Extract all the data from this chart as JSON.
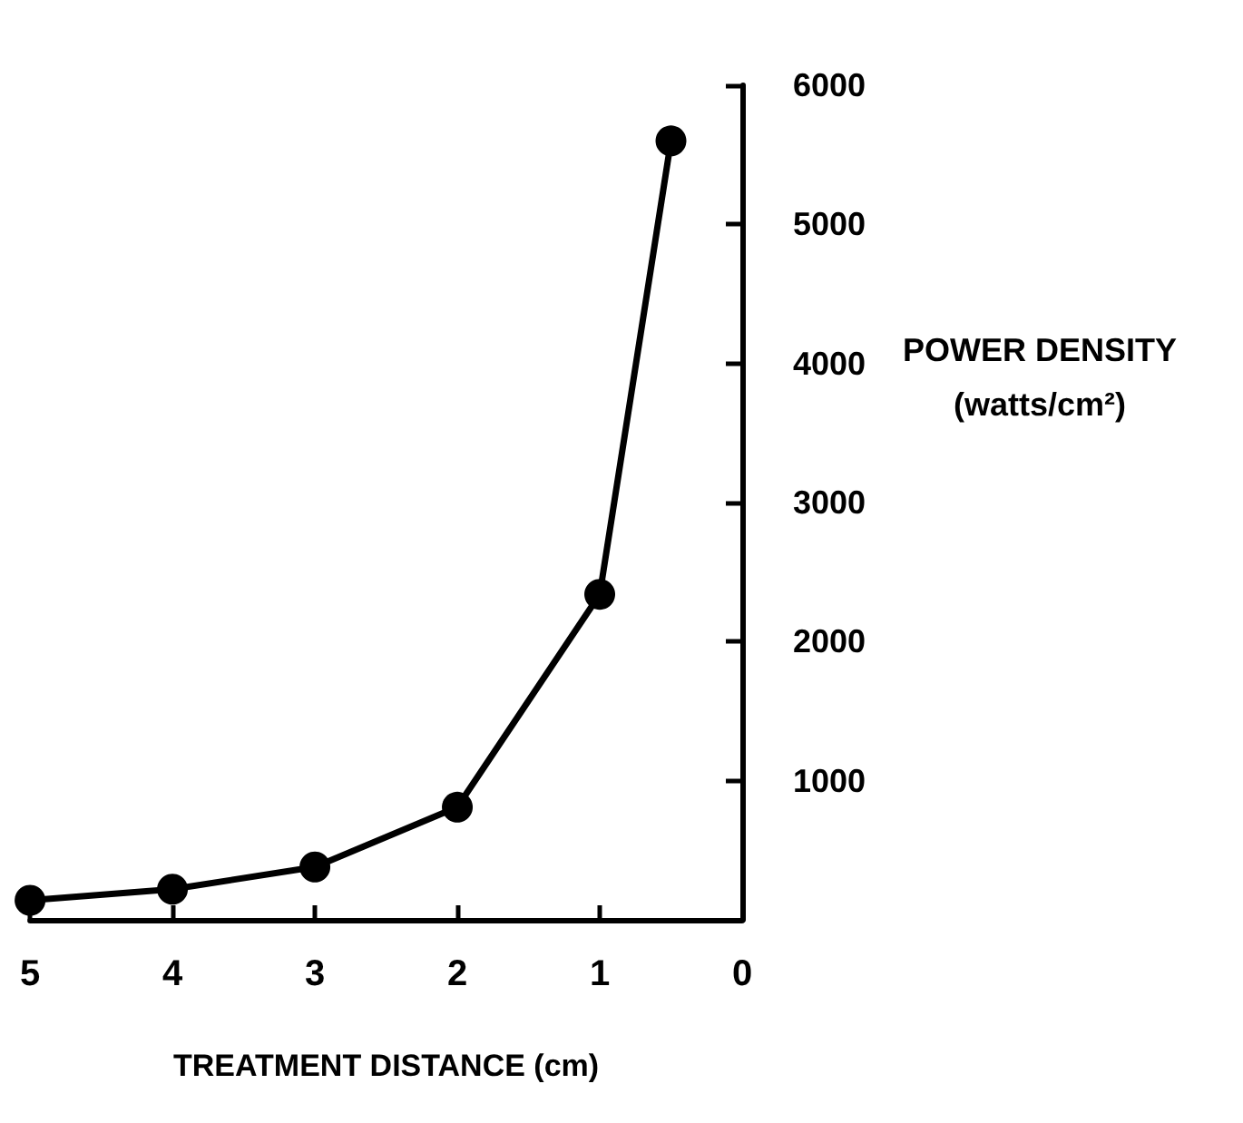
{
  "chart_data": {
    "type": "line",
    "xlabel": "TREATMENT DISTANCE (cm)",
    "ylabel": "POWER DENSITY\n(watts/cm²)",
    "x": [
      5,
      4,
      3,
      2,
      1,
      0.5
    ],
    "series": [
      {
        "color": "#000000",
        "values": [
          140,
          220,
          380,
          810,
          2340,
          5600
        ]
      }
    ],
    "xlim": [
      5,
      0
    ],
    "xticks": [
      5,
      4,
      3,
      2,
      1,
      0
    ],
    "ylim": [
      0,
      6000
    ],
    "yticks": [
      {
        "value": 0,
        "label": null
      },
      1000,
      2000,
      3000,
      4000,
      5000,
      6000
    ],
    "marker": "circle",
    "line_style": "solid",
    "grid": false
  }
}
